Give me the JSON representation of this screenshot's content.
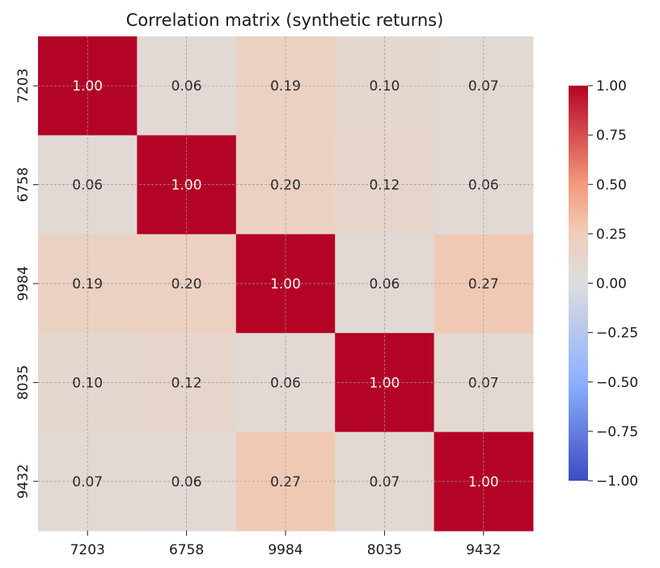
{
  "chart_data": {
    "type": "heatmap",
    "title": "Correlation matrix (synthetic returns)",
    "xlabel": "",
    "ylabel": "",
    "categories": [
      "7203",
      "6758",
      "9984",
      "8035",
      "9432"
    ],
    "row_labels": [
      "7203",
      "6758",
      "9984",
      "8035",
      "9432"
    ],
    "values": [
      [
        1.0,
        0.06,
        0.19,
        0.1,
        0.07
      ],
      [
        0.06,
        1.0,
        0.2,
        0.12,
        0.06
      ],
      [
        0.19,
        0.2,
        1.0,
        0.06,
        0.27
      ],
      [
        0.1,
        0.12,
        0.06,
        1.0,
        0.07
      ],
      [
        0.07,
        0.06,
        0.27,
        0.07,
        1.0
      ]
    ],
    "value_format": "0.00",
    "colormap": "coolwarm",
    "vmin": -1.0,
    "vmax": 1.0,
    "colorbar_ticks": [
      "1.00",
      "0.75",
      "0.50",
      "0.25",
      "0.00",
      "−0.25",
      "−0.50",
      "−0.75",
      "−1.00"
    ],
    "grid": true,
    "colorbar_position": "right"
  }
}
